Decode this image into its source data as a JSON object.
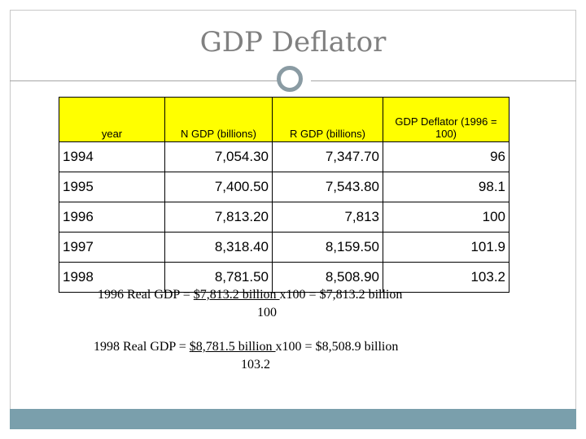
{
  "slide": {
    "title": "GDP Deflator"
  },
  "table": {
    "headers": [
      "year",
      "N GDP (billions)",
      "R GDP (billions)",
      "GDP Deflator (1996 = 100)"
    ],
    "rows": [
      [
        "1994",
        "7,054.30",
        "7,347.70",
        "96"
      ],
      [
        "1995",
        "7,400.50",
        "7,543.80",
        "98.1"
      ],
      [
        "1996",
        "7,813.20",
        "7,813",
        "100"
      ],
      [
        "1997",
        "8,318.40",
        "8,159.50",
        "101.9"
      ],
      [
        "1998",
        "8,781.50",
        "8,508.90",
        "103.2"
      ]
    ]
  },
  "formulas": {
    "f1": {
      "prefix": "1996 Real GDP  = ",
      "numerator": "$7,813.2 billion ",
      "suffix": "x100 = $7,813.2 billion",
      "denominator": "100"
    },
    "f2": {
      "prefix": "1998 Real GDP  = ",
      "numerator": "$8,781.5 billion ",
      "suffix": "x100 = $8,508.9 billion",
      "denominator": "103.2"
    }
  },
  "colors": {
    "header_fill": "#ffff00",
    "bottom_bar": "#7a9fac"
  }
}
